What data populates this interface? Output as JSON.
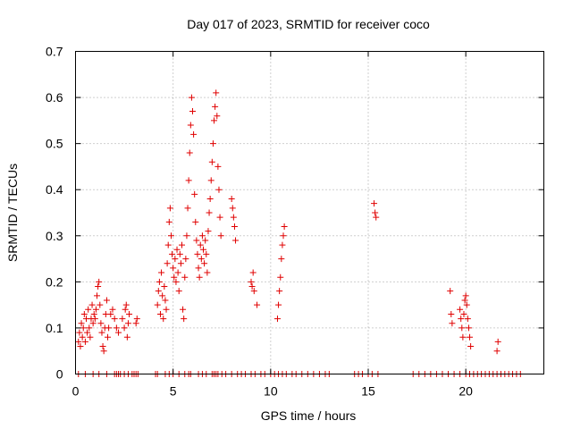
{
  "chart_data": {
    "type": "scatter",
    "title": "Day 017 of 2023, SRMTID for receiver coco",
    "xlabel": "GPS time / hours",
    "ylabel": "SRMTID / TECUs",
    "xlim": [
      0,
      24
    ],
    "ylim": [
      0,
      0.7
    ],
    "x_ticks": [
      0,
      5,
      10,
      15,
      20
    ],
    "x_tick_labels": [
      "0",
      "5",
      "10",
      "15",
      "20"
    ],
    "y_ticks": [
      0,
      0.1,
      0.2,
      0.3,
      0.4,
      0.5,
      0.6,
      0.7
    ],
    "y_tick_labels": [
      "0",
      "0.1",
      "0.2",
      "0.3",
      "0.4",
      "0.5",
      "0.6",
      "0.7"
    ],
    "grid": true,
    "marker": "+",
    "color": "#e00000",
    "series": [
      {
        "name": "SRMTID",
        "points": [
          [
            0.15,
            0.07
          ],
          [
            0.2,
            0.09
          ],
          [
            0.25,
            0.06
          ],
          [
            0.3,
            0.11
          ],
          [
            0.35,
            0.08
          ],
          [
            0.4,
            0.1
          ],
          [
            0.45,
            0.13
          ],
          [
            0.5,
            0.07
          ],
          [
            0.55,
            0.12
          ],
          [
            0.6,
            0.09
          ],
          [
            0.65,
            0.14
          ],
          [
            0.7,
            0.1
          ],
          [
            0.75,
            0.08
          ],
          [
            0.8,
            0.12
          ],
          [
            0.85,
            0.15
          ],
          [
            0.9,
            0.11
          ],
          [
            0.95,
            0.13
          ],
          [
            1.0,
            0.12
          ],
          [
            1.05,
            0.14
          ],
          [
            1.1,
            0.17
          ],
          [
            1.15,
            0.19
          ],
          [
            1.2,
            0.2
          ],
          [
            1.25,
            0.15
          ],
          [
            1.3,
            0.11
          ],
          [
            1.35,
            0.09
          ],
          [
            1.4,
            0.06
          ],
          [
            1.45,
            0.05
          ],
          [
            1.5,
            0.1
          ],
          [
            1.55,
            0.13
          ],
          [
            1.6,
            0.16
          ],
          [
            1.65,
            0.08
          ],
          [
            1.7,
            0.1
          ],
          [
            1.8,
            0.13
          ],
          [
            1.9,
            0.14
          ],
          [
            2.0,
            0.12
          ],
          [
            2.1,
            0.1
          ],
          [
            2.2,
            0.09
          ],
          [
            2.4,
            0.12
          ],
          [
            2.5,
            0.1
          ],
          [
            2.55,
            0.14
          ],
          [
            2.6,
            0.15
          ],
          [
            2.65,
            0.08
          ],
          [
            2.7,
            0.11
          ],
          [
            2.75,
            0.13
          ],
          [
            3.1,
            0.11
          ],
          [
            3.15,
            0.12
          ],
          [
            4.2,
            0.15
          ],
          [
            4.25,
            0.18
          ],
          [
            4.3,
            0.2
          ],
          [
            4.35,
            0.13
          ],
          [
            4.4,
            0.22
          ],
          [
            4.45,
            0.17
          ],
          [
            4.5,
            0.12
          ],
          [
            4.55,
            0.19
          ],
          [
            4.6,
            0.16
          ],
          [
            4.65,
            0.14
          ],
          [
            4.7,
            0.24
          ],
          [
            4.75,
            0.28
          ],
          [
            4.8,
            0.33
          ],
          [
            4.85,
            0.36
          ],
          [
            4.9,
            0.3
          ],
          [
            4.95,
            0.26
          ],
          [
            5.0,
            0.23
          ],
          [
            5.05,
            0.21
          ],
          [
            5.1,
            0.25
          ],
          [
            5.15,
            0.2
          ],
          [
            5.2,
            0.27
          ],
          [
            5.25,
            0.22
          ],
          [
            5.3,
            0.18
          ],
          [
            5.35,
            0.26
          ],
          [
            5.4,
            0.24
          ],
          [
            5.45,
            0.28
          ],
          [
            5.5,
            0.14
          ],
          [
            5.55,
            0.12
          ],
          [
            5.6,
            0.21
          ],
          [
            5.65,
            0.25
          ],
          [
            5.7,
            0.3
          ],
          [
            5.75,
            0.36
          ],
          [
            5.8,
            0.42
          ],
          [
            5.85,
            0.48
          ],
          [
            5.9,
            0.54
          ],
          [
            5.95,
            0.6
          ],
          [
            6.0,
            0.57
          ],
          [
            6.05,
            0.52
          ],
          [
            6.1,
            0.39
          ],
          [
            6.15,
            0.33
          ],
          [
            6.2,
            0.29
          ],
          [
            6.25,
            0.26
          ],
          [
            6.3,
            0.23
          ],
          [
            6.35,
            0.21
          ],
          [
            6.4,
            0.28
          ],
          [
            6.45,
            0.25
          ],
          [
            6.5,
            0.3
          ],
          [
            6.55,
            0.27
          ],
          [
            6.6,
            0.24
          ],
          [
            6.65,
            0.29
          ],
          [
            6.7,
            0.26
          ],
          [
            6.75,
            0.22
          ],
          [
            6.8,
            0.31
          ],
          [
            6.85,
            0.35
          ],
          [
            6.9,
            0.38
          ],
          [
            6.95,
            0.42
          ],
          [
            7.0,
            0.46
          ],
          [
            7.05,
            0.5
          ],
          [
            7.1,
            0.55
          ],
          [
            7.15,
            0.58
          ],
          [
            7.2,
            0.61
          ],
          [
            7.25,
            0.56
          ],
          [
            7.3,
            0.45
          ],
          [
            7.35,
            0.4
          ],
          [
            7.4,
            0.34
          ],
          [
            7.45,
            0.3
          ],
          [
            8.0,
            0.38
          ],
          [
            8.05,
            0.36
          ],
          [
            8.1,
            0.34
          ],
          [
            8.15,
            0.32
          ],
          [
            8.2,
            0.29
          ],
          [
            9.0,
            0.2
          ],
          [
            9.05,
            0.19
          ],
          [
            9.1,
            0.22
          ],
          [
            9.15,
            0.18
          ],
          [
            9.3,
            0.15
          ],
          [
            10.35,
            0.12
          ],
          [
            10.4,
            0.15
          ],
          [
            10.45,
            0.18
          ],
          [
            10.5,
            0.21
          ],
          [
            10.55,
            0.25
          ],
          [
            10.6,
            0.28
          ],
          [
            10.65,
            0.3
          ],
          [
            10.7,
            0.32
          ],
          [
            15.3,
            0.37
          ],
          [
            15.35,
            0.35
          ],
          [
            15.4,
            0.34
          ],
          [
            19.2,
            0.18
          ],
          [
            19.25,
            0.13
          ],
          [
            19.3,
            0.11
          ],
          [
            19.7,
            0.14
          ],
          [
            19.75,
            0.12
          ],
          [
            19.8,
            0.1
          ],
          [
            19.85,
            0.08
          ],
          [
            19.9,
            0.13
          ],
          [
            19.95,
            0.16
          ],
          [
            20.0,
            0.17
          ],
          [
            20.05,
            0.15
          ],
          [
            20.1,
            0.12
          ],
          [
            20.15,
            0.1
          ],
          [
            20.2,
            0.08
          ],
          [
            20.25,
            0.06
          ],
          [
            21.6,
            0.05
          ],
          [
            21.65,
            0.07
          ],
          [
            0.15,
            0
          ],
          [
            0.5,
            0
          ],
          [
            0.9,
            0
          ],
          [
            1.2,
            0
          ],
          [
            1.6,
            0
          ],
          [
            2.0,
            0
          ],
          [
            2.1,
            0
          ],
          [
            2.2,
            0
          ],
          [
            2.3,
            0
          ],
          [
            2.5,
            0
          ],
          [
            2.7,
            0
          ],
          [
            2.9,
            0
          ],
          [
            3.0,
            0
          ],
          [
            3.1,
            0
          ],
          [
            3.2,
            0
          ],
          [
            4.1,
            0
          ],
          [
            4.2,
            0
          ],
          [
            4.6,
            0
          ],
          [
            4.8,
            0
          ],
          [
            5.0,
            0
          ],
          [
            5.3,
            0
          ],
          [
            5.6,
            0
          ],
          [
            5.8,
            0
          ],
          [
            5.9,
            0
          ],
          [
            6.3,
            0
          ],
          [
            6.5,
            0
          ],
          [
            6.7,
            0
          ],
          [
            7.0,
            0
          ],
          [
            7.1,
            0
          ],
          [
            7.2,
            0
          ],
          [
            7.3,
            0
          ],
          [
            7.5,
            0
          ],
          [
            7.7,
            0
          ],
          [
            8.0,
            0
          ],
          [
            8.3,
            0
          ],
          [
            8.5,
            0
          ],
          [
            8.7,
            0
          ],
          [
            9.0,
            0
          ],
          [
            9.2,
            0
          ],
          [
            9.5,
            0
          ],
          [
            9.7,
            0
          ],
          [
            10.0,
            0
          ],
          [
            10.2,
            0
          ],
          [
            10.4,
            0
          ],
          [
            10.6,
            0
          ],
          [
            10.8,
            0
          ],
          [
            11.1,
            0
          ],
          [
            11.3,
            0
          ],
          [
            11.6,
            0
          ],
          [
            11.9,
            0
          ],
          [
            12.2,
            0
          ],
          [
            12.5,
            0
          ],
          [
            12.8,
            0
          ],
          [
            13.0,
            0
          ],
          [
            14.3,
            0
          ],
          [
            14.5,
            0
          ],
          [
            14.7,
            0
          ],
          [
            15.0,
            0
          ],
          [
            15.2,
            0
          ],
          [
            15.5,
            0
          ],
          [
            17.3,
            0
          ],
          [
            17.6,
            0
          ],
          [
            17.9,
            0
          ],
          [
            18.2,
            0
          ],
          [
            18.5,
            0
          ],
          [
            18.8,
            0
          ],
          [
            19.1,
            0
          ],
          [
            19.4,
            0
          ],
          [
            19.7,
            0
          ],
          [
            20.0,
            0
          ],
          [
            20.2,
            0
          ],
          [
            20.4,
            0
          ],
          [
            20.6,
            0
          ],
          [
            20.8,
            0
          ],
          [
            21.0,
            0
          ],
          [
            21.2,
            0
          ],
          [
            21.4,
            0
          ],
          [
            21.6,
            0
          ],
          [
            21.8,
            0
          ],
          [
            22.0,
            0
          ],
          [
            22.2,
            0
          ],
          [
            22.4,
            0
          ],
          [
            22.6,
            0
          ],
          [
            22.8,
            0
          ]
        ]
      }
    ]
  }
}
